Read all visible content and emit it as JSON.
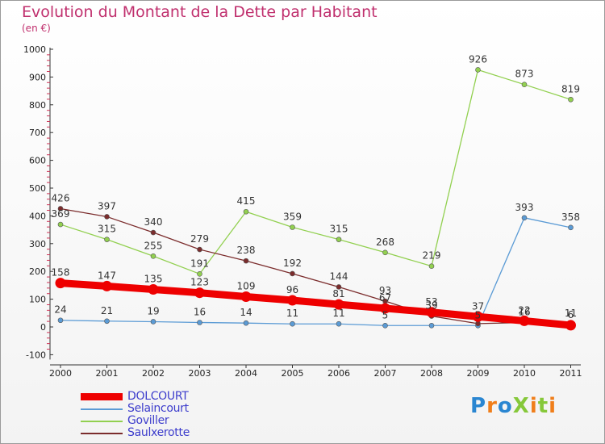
{
  "title": "Evolution du Montant de la Dette par Habitant",
  "subtitle": "(en €)",
  "logo": {
    "text": "ProXiti",
    "letters": [
      {
        "ch": "P",
        "color": "#2a86d1"
      },
      {
        "ch": "r",
        "color": "#f07e1a"
      },
      {
        "ch": "o",
        "color": "#2a86d1"
      },
      {
        "ch": "X",
        "color": "#86c83a"
      },
      {
        "ch": "i",
        "color": "#f07e1a"
      },
      {
        "ch": "t",
        "color": "#86c83a"
      },
      {
        "ch": "i",
        "color": "#f07e1a"
      }
    ]
  },
  "chart_data": {
    "type": "line",
    "title": "Evolution du Montant de la Dette par Habitant",
    "subtitle": "(en €)",
    "x": [
      "2000",
      "2001",
      "2002",
      "2003",
      "2004",
      "2005",
      "2006",
      "2007",
      "2008",
      "2009",
      "2010",
      "2011"
    ],
    "ylim": [
      -100,
      1000
    ],
    "yticks": [
      "-100",
      "0",
      "100",
      "200",
      "300",
      "400",
      "500",
      "600",
      "700",
      "800",
      "900",
      "1000"
    ],
    "grid": false,
    "legend": "bottom-left",
    "series": [
      {
        "name": "DOLCOURT",
        "color": "#ee0000",
        "width": 9,
        "values": [
          158,
          147,
          135,
          123,
          109,
          96,
          81,
          67,
          53,
          37,
          22,
          6
        ],
        "labels": [
          "158",
          "147",
          "135",
          "123",
          "109",
          "96",
          "81",
          "67",
          "53",
          "37",
          "22",
          "6"
        ]
      },
      {
        "name": "Selaincourt",
        "color": "#5b9bd5",
        "width": 1.3,
        "values": [
          24,
          21,
          19,
          16,
          14,
          11,
          11,
          5,
          5,
          5,
          393,
          358
        ],
        "labels": [
          "24",
          "21",
          "19",
          "16",
          "14",
          "11",
          "11",
          "5",
          "",
          "5",
          "393",
          "358"
        ]
      },
      {
        "name": "Goviller",
        "color": "#92d050",
        "width": 1.3,
        "values": [
          369,
          315,
          255,
          191,
          415,
          359,
          315,
          268,
          219,
          926,
          873,
          819
        ],
        "labels": [
          "369",
          "315",
          "255",
          "191",
          "415",
          "359",
          "315",
          "268",
          "219",
          "926",
          "873",
          "819"
        ]
      },
      {
        "name": "Saulxerotte",
        "color": "#7b2c2c",
        "width": 1.3,
        "values": [
          426,
          397,
          340,
          279,
          238,
          192,
          144,
          93,
          39,
          12,
          16,
          11
        ],
        "labels": [
          "426",
          "397",
          "340",
          "279",
          "238",
          "192",
          "144",
          "93",
          "39",
          "",
          "16",
          "11"
        ]
      }
    ]
  }
}
